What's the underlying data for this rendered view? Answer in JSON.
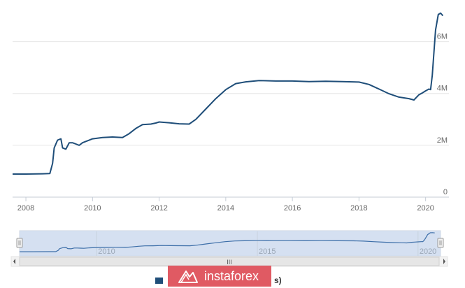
{
  "chart_data": {
    "type": "line",
    "title": "",
    "xlabel": "",
    "ylabel": "",
    "xlim": [
      2007.6,
      2020.7
    ],
    "ylim": [
      0,
      7500000
    ],
    "yticks": [
      {
        "value": 0,
        "label": "0"
      },
      {
        "value": 2000000,
        "label": "2M"
      },
      {
        "value": 4000000,
        "label": "4M"
      },
      {
        "value": 6000000,
        "label": "6M"
      }
    ],
    "xticks": [
      "2008",
      "2010",
      "2012",
      "2014",
      "2016",
      "2018",
      "2020"
    ],
    "grid": true,
    "line_color": "#1f4e79",
    "series": [
      {
        "x": [
          2007.6,
          2008.0,
          2008.5,
          2008.72,
          2008.8,
          2008.85,
          2008.95,
          2009.05,
          2009.1,
          2009.2,
          2009.3,
          2009.4,
          2009.5,
          2009.6,
          2009.7,
          2009.8,
          2010.0,
          2010.3,
          2010.6,
          2010.9,
          2011.1,
          2011.3,
          2011.5,
          2011.75,
          2011.9,
          2012.0,
          2012.3,
          2012.6,
          2012.9,
          2013.1,
          2013.4,
          2013.7,
          2014.0,
          2014.3,
          2014.6,
          2015.0,
          2015.5,
          2016.0,
          2016.5,
          2017.0,
          2017.5,
          2018.0,
          2018.3,
          2018.6,
          2018.9,
          2019.2,
          2019.5,
          2019.65,
          2019.8,
          2019.9,
          2020.0,
          2020.1,
          2020.15,
          2020.2,
          2020.25,
          2020.3,
          2020.38,
          2020.45,
          2020.52
        ],
        "y": [
          890000,
          890000,
          900000,
          910000,
          1300000,
          1900000,
          2200000,
          2250000,
          1900000,
          1850000,
          2100000,
          2100000,
          2050000,
          2000000,
          2100000,
          2150000,
          2250000,
          2300000,
          2320000,
          2300000,
          2450000,
          2650000,
          2800000,
          2820000,
          2860000,
          2900000,
          2870000,
          2830000,
          2820000,
          3000000,
          3400000,
          3800000,
          4150000,
          4380000,
          4450000,
          4500000,
          4480000,
          4480000,
          4460000,
          4470000,
          4460000,
          4440000,
          4350000,
          4170000,
          3990000,
          3860000,
          3800000,
          3750000,
          3950000,
          4020000,
          4100000,
          4170000,
          4150000,
          4700000,
          5600000,
          6450000,
          7050000,
          7100000,
          7000000
        ]
      }
    ],
    "navigator": {
      "xticks": [
        "2010",
        "2015",
        "2020"
      ],
      "handle_label": "III"
    },
    "legend": {
      "visible_text": "s)"
    }
  },
  "watermark": {
    "text": "instaforex"
  }
}
